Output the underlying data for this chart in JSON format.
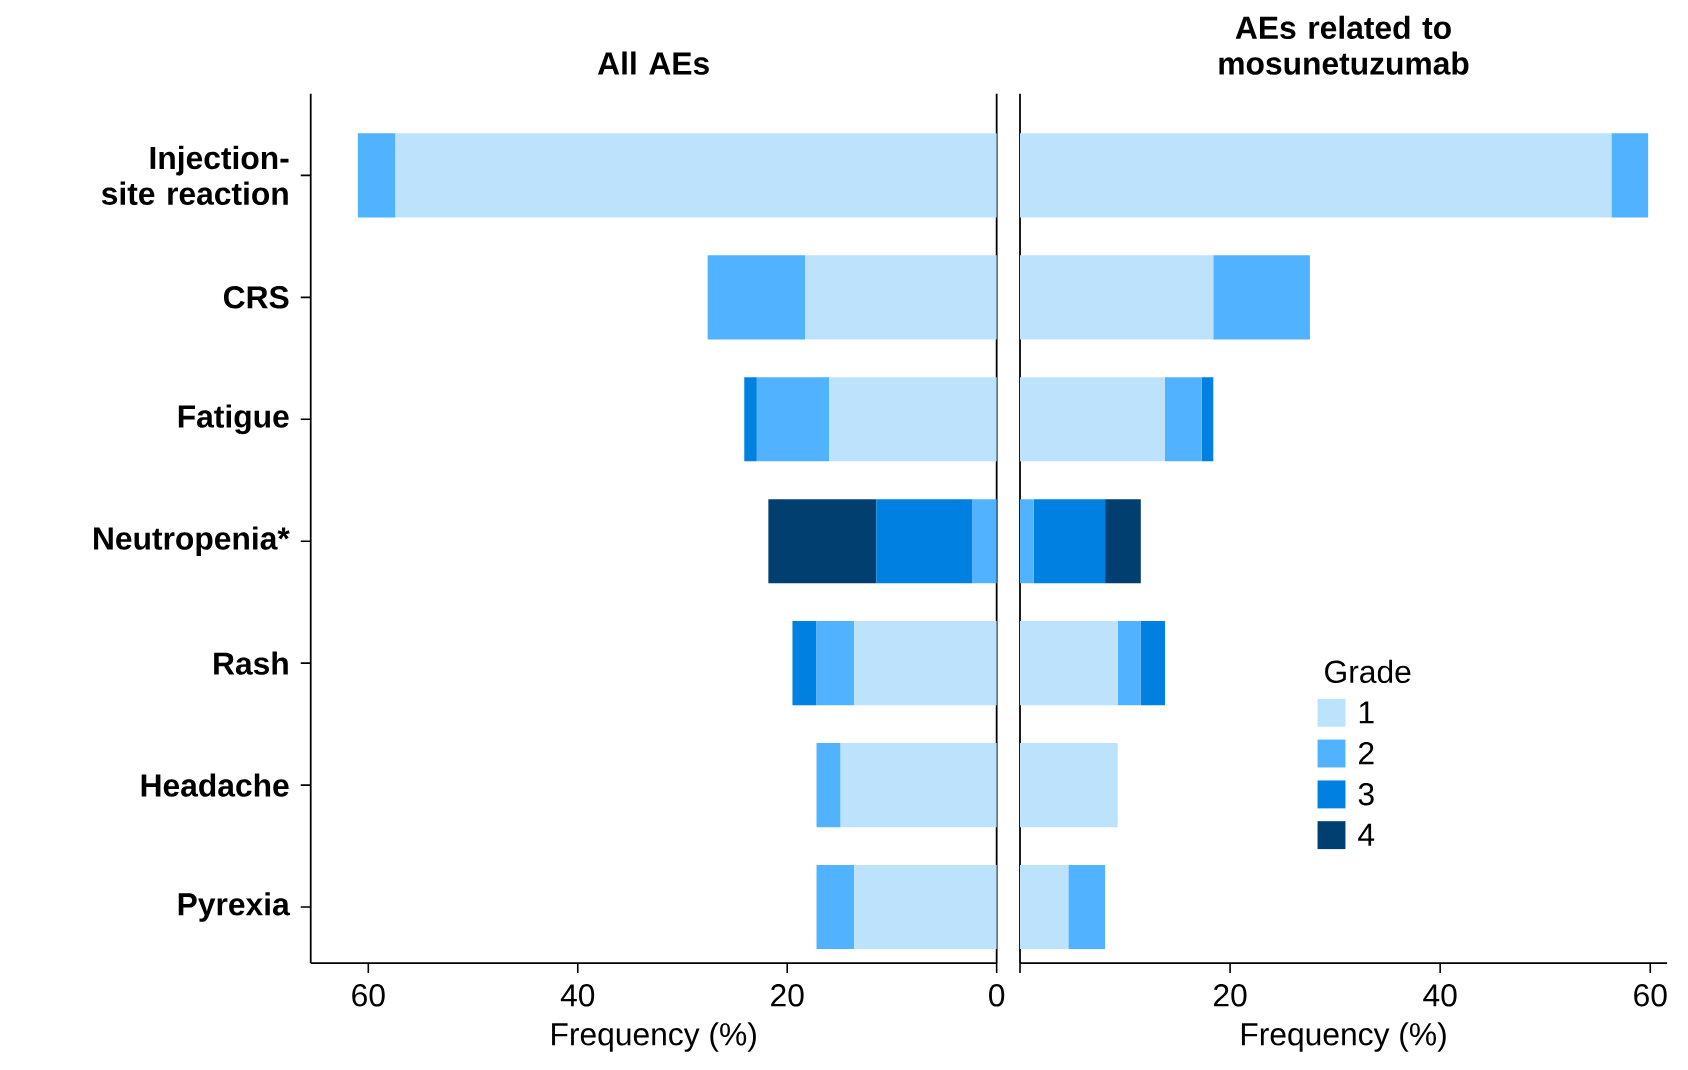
{
  "chart_data": [
    {
      "type": "bar",
      "orientation": "horizontal",
      "stacked": true,
      "title": "All AEs",
      "xlabel": "Frequency (%)",
      "categories": [
        "Injection-site reaction",
        "CRS",
        "Fatigue",
        "Neutropenia*",
        "Rash",
        "Headache",
        "Pyrexia"
      ],
      "series": [
        {
          "color": "#bde3fc",
          "values": [
            57.4,
            18.3,
            16.0,
            null,
            13.6,
            14.9,
            13.6
          ]
        },
        {
          "color": "#51b3ff",
          "values": [
            3.6,
            9.3,
            6.9,
            2.3,
            3.6,
            2.3,
            3.6
          ]
        },
        {
          "color": "#0080e0",
          "values": [
            null,
            null,
            1.2,
            9.2,
            2.3,
            null,
            null
          ]
        },
        {
          "color": "#003f6f",
          "values": [
            null,
            null,
            null,
            10.3,
            null,
            null,
            null
          ]
        }
      ],
      "xlim": [
        65.5,
        0
      ],
      "xticks": [
        0,
        20,
        40,
        60
      ]
    },
    {
      "type": "bar",
      "orientation": "horizontal",
      "stacked": true,
      "title": "AEs related to mosunetuzumab",
      "xlabel": "Frequency (%)",
      "categories": [
        null,
        null,
        null,
        null,
        null,
        null,
        null
      ],
      "series": [
        {
          "name": "1",
          "color": "#bde3fc",
          "values": [
            56.3,
            18.4,
            13.8,
            null,
            9.3,
            9.3,
            4.6
          ]
        },
        {
          "name": "2",
          "color": "#51b3ff",
          "values": [
            3.5,
            9.2,
            3.5,
            1.3,
            2.2,
            null,
            3.5
          ]
        },
        {
          "name": "3",
          "color": "#0080e0",
          "values": [
            null,
            null,
            1.1,
            6.8,
            2.3,
            null,
            null
          ]
        },
        {
          "name": "4",
          "color": "#003f6f",
          "values": [
            null,
            null,
            null,
            3.4,
            null,
            null,
            null
          ]
        }
      ],
      "xlim": [
        0,
        61.6
      ],
      "xticks": [
        {
          "value": 0,
          "label": null
        },
        20,
        40,
        60
      ],
      "tick_labels": "x",
      "legend": "bottom right",
      "legend_title": "Grade"
    }
  ]
}
